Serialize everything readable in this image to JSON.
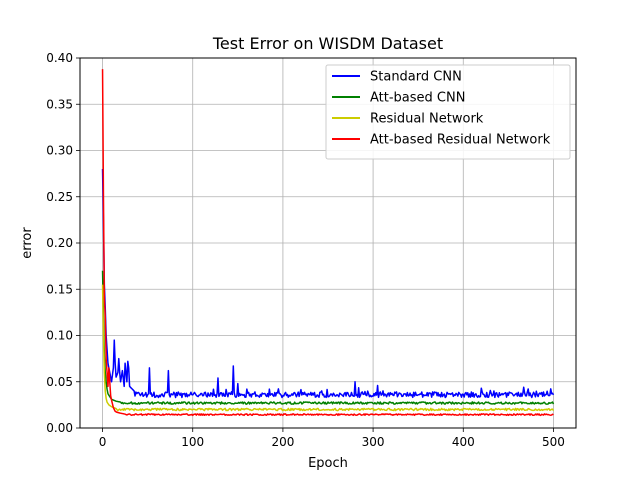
{
  "chart_data": {
    "type": "line",
    "title": "Test Error on WISDM Dataset",
    "xlabel": "Epoch",
    "ylabel": "error",
    "xlim": [
      -25,
      525
    ],
    "ylim": [
      0.0,
      0.4
    ],
    "xticks": [
      0,
      100,
      200,
      300,
      400,
      500
    ],
    "yticks": [
      0.0,
      0.05,
      0.1,
      0.15,
      0.2,
      0.25,
      0.3,
      0.35,
      0.4
    ],
    "xtick_labels": [
      "0",
      "100",
      "200",
      "300",
      "400",
      "500"
    ],
    "ytick_labels": [
      "0.00",
      "0.05",
      "0.10",
      "0.15",
      "0.20",
      "0.25",
      "0.30",
      "0.35",
      "0.40"
    ],
    "grid": true,
    "legend_position": "top-right",
    "series": [
      {
        "name": "Standard CNN",
        "color": "#0000ff",
        "baseline": 0.036,
        "noise": 0.003,
        "start": [
          [
            0,
            0.28
          ],
          [
            1,
            0.22
          ],
          [
            2,
            0.155
          ],
          [
            3,
            0.13
          ],
          [
            4,
            0.1
          ],
          [
            5,
            0.085
          ],
          [
            6,
            0.07
          ],
          [
            8,
            0.06
          ],
          [
            10,
            0.05
          ],
          [
            12,
            0.065
          ],
          [
            13,
            0.095
          ],
          [
            14,
            0.07
          ],
          [
            15,
            0.055
          ],
          [
            17,
            0.06
          ],
          [
            18,
            0.075
          ],
          [
            19,
            0.06
          ],
          [
            20,
            0.05
          ],
          [
            22,
            0.062
          ],
          [
            24,
            0.045
          ],
          [
            25,
            0.07
          ],
          [
            26,
            0.06
          ],
          [
            27,
            0.05
          ],
          [
            28,
            0.072
          ],
          [
            29,
            0.065
          ],
          [
            30,
            0.045
          ],
          [
            35,
            0.04
          ]
        ],
        "spikes": [
          [
            52,
            0.065
          ],
          [
            73,
            0.062
          ],
          [
            128,
            0.054
          ],
          [
            145,
            0.067
          ],
          [
            150,
            0.048
          ],
          [
            160,
            0.042
          ],
          [
            280,
            0.05
          ],
          [
            305,
            0.046
          ],
          [
            420,
            0.043
          ],
          [
            467,
            0.044
          ]
        ]
      },
      {
        "name": "Att-based CNN",
        "color": "#008000",
        "baseline": 0.027,
        "noise": 0.0012,
        "start": [
          [
            0,
            0.17
          ],
          [
            1,
            0.12
          ],
          [
            2,
            0.08
          ],
          [
            3,
            0.06
          ],
          [
            4,
            0.05
          ],
          [
            5,
            0.042
          ],
          [
            6,
            0.037
          ],
          [
            8,
            0.034
          ],
          [
            10,
            0.031
          ],
          [
            15,
            0.029
          ],
          [
            20,
            0.028
          ]
        ],
        "spikes": []
      },
      {
        "name": "Residual Network",
        "color": "#cccc00",
        "baseline": 0.02,
        "noise": 0.0012,
        "start": [
          [
            0,
            0.155
          ],
          [
            1,
            0.1
          ],
          [
            2,
            0.06
          ],
          [
            3,
            0.04
          ],
          [
            4,
            0.032
          ],
          [
            5,
            0.028
          ],
          [
            7,
            0.025
          ],
          [
            10,
            0.023
          ],
          [
            15,
            0.021
          ]
        ],
        "spikes": []
      },
      {
        "name": "Att-based Residual Network",
        "color": "#ff0000",
        "baseline": 0.0145,
        "noise": 0.0008,
        "start": [
          [
            0,
            0.388
          ],
          [
            1,
            0.25
          ],
          [
            2,
            0.14
          ],
          [
            3,
            0.12
          ],
          [
            4,
            0.075
          ],
          [
            5,
            0.06
          ],
          [
            6,
            0.045
          ],
          [
            7,
            0.065
          ],
          [
            8,
            0.05
          ],
          [
            9,
            0.035
          ],
          [
            10,
            0.03
          ],
          [
            12,
            0.022
          ],
          [
            14,
            0.018
          ],
          [
            16,
            0.017
          ],
          [
            20,
            0.016
          ],
          [
            25,
            0.015
          ]
        ],
        "spikes": []
      }
    ]
  }
}
